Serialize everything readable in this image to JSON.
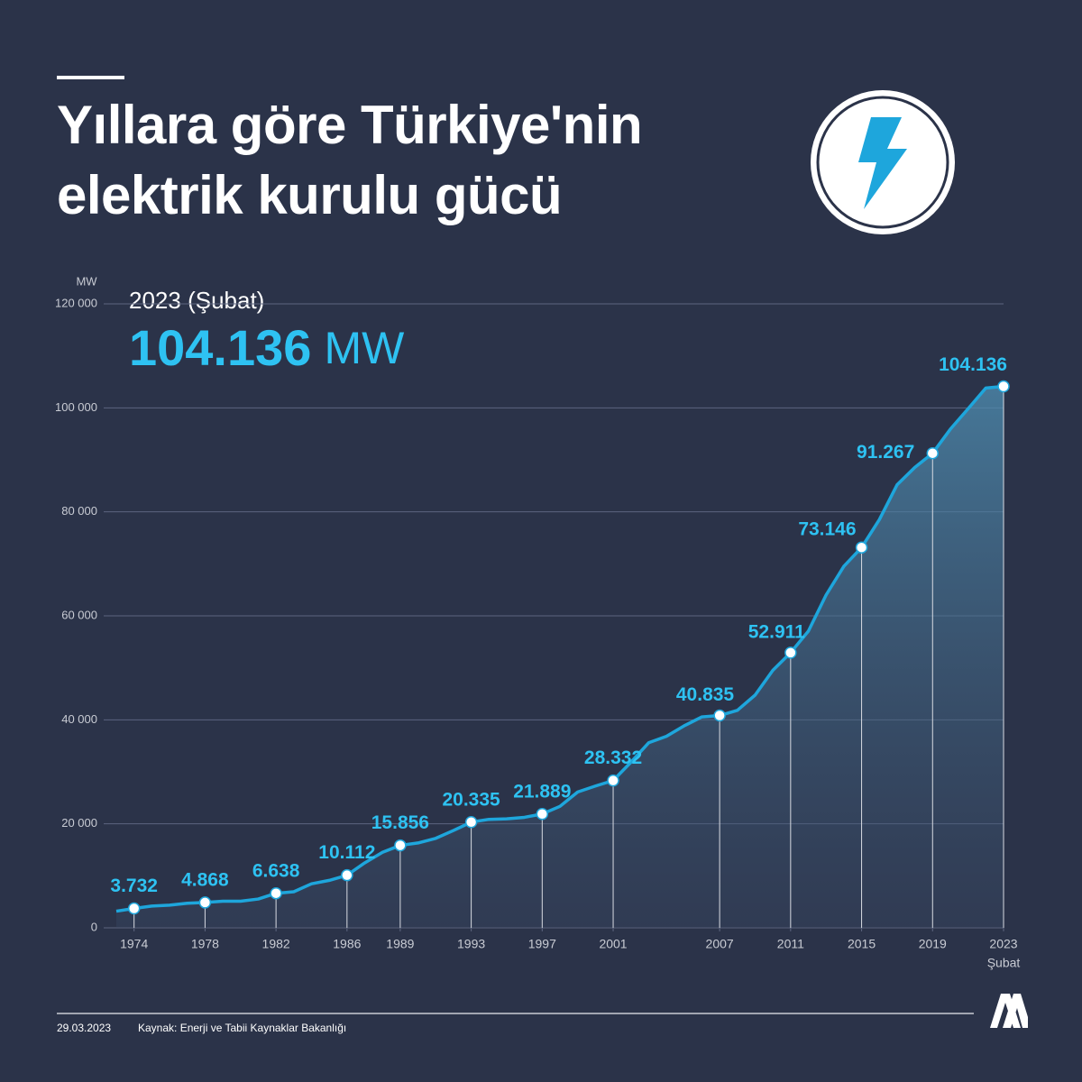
{
  "chart_data": {
    "type": "area",
    "title": "Yıllara göre Türkiye'nin elektrik kurulu gücü",
    "y_unit": "MW",
    "headline": {
      "label": "2023 (Şubat)",
      "value_label": "104.136",
      "unit": "MW"
    },
    "x_note": "Şubat",
    "date": "29.03.2023",
    "source": "Kaynak: Enerji ve Tabii Kaynaklar Bakanlığı",
    "xlim": [
      1973,
      2023
    ],
    "xticks": [
      1974,
      1978,
      1982,
      1986,
      1989,
      1993,
      1997,
      2001,
      2007,
      2011,
      2015,
      2019,
      2023
    ],
    "ylim": [
      0,
      120000
    ],
    "yticks": [
      0,
      {
        "value": 20000,
        "label": "20 000"
      },
      {
        "value": 40000,
        "label": "40 000"
      },
      {
        "value": 60000,
        "label": "60 000"
      },
      {
        "value": 80000,
        "label": "80 000"
      },
      {
        "value": 100000,
        "label": "100 000"
      },
      {
        "value": 120000,
        "label": "120 000"
      }
    ],
    "grid": true,
    "series": [
      {
        "color": "#1ea6dc",
        "x": [
          1973,
          1974,
          1975,
          1976,
          1977,
          1978,
          1979,
          1980,
          1981,
          1982,
          1983,
          1984,
          1985,
          1986,
          1987,
          1988,
          1989,
          1990,
          1991,
          1992,
          1993,
          1994,
          1995,
          1996,
          1997,
          1998,
          1999,
          2000,
          2001,
          2002,
          2003,
          2004,
          2005,
          2006,
          2007,
          2008,
          2009,
          2010,
          2011,
          2012,
          2013,
          2014,
          2015,
          2016,
          2017,
          2018,
          2019,
          2020,
          2021,
          2022,
          2023
        ],
        "values": [
          3194,
          3732,
          4187,
          4364,
          4727,
          4868,
          5119,
          5119,
          5538,
          6638,
          6935,
          8462,
          9122,
          10112,
          12495,
          14521,
          15856,
          16318,
          17209,
          18716,
          20335,
          20860,
          20954,
          21249,
          21889,
          23354,
          26119,
          27264,
          28332,
          31846,
          35587,
          36824,
          38844,
          40565,
          40835,
          41817,
          44761,
          49524,
          52911,
          57059,
          64008,
          69520,
          73146,
          78497,
          85200,
          88551,
          91267,
          95891,
          99820,
          103809,
          104136
        ]
      }
    ],
    "highlights": {
      "color": "#2ec2f2",
      "x": [
        1974,
        1978,
        1982,
        1986,
        1989,
        1993,
        1997,
        2001,
        2007,
        2011,
        2015,
        2019,
        2023
      ],
      "values": [
        3732,
        4868,
        6638,
        10112,
        15856,
        20335,
        21889,
        28332,
        40835,
        52911,
        73146,
        91267,
        104136
      ],
      "value_labels": [
        "3.732",
        "4.868",
        "6.638",
        "10.112",
        "15.856",
        "20.335",
        "21.889",
        "28.332",
        "40.835",
        "52.911",
        "73.146",
        "91.267",
        "104.136"
      ]
    }
  }
}
